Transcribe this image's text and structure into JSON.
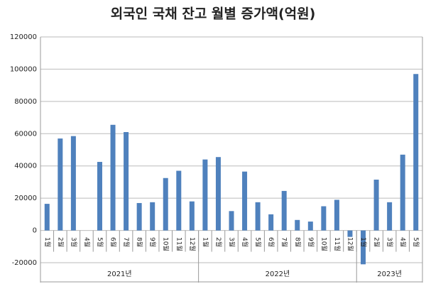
{
  "chart_data": {
    "type": "bar",
    "title": "외국인 국채 잔고 월별 증가액(억원)",
    "color": "#4f81bd",
    "ylim": [
      -20000,
      120000
    ],
    "yticks": [
      -20000,
      0,
      20000,
      40000,
      60000,
      80000,
      100000,
      120000
    ],
    "grid": true,
    "groups": [
      {
        "label": "2021년",
        "categories": [
          "1월",
          "2월",
          "3월",
          "4월",
          "5월",
          "6월",
          "7월",
          "8월",
          "9월",
          "10월",
          "11월",
          "12월"
        ],
        "values": [
          16500,
          57000,
          58500,
          0,
          42500,
          65500,
          61000,
          17000,
          17500,
          32500,
          37000,
          18000
        ]
      },
      {
        "label": "2022년",
        "categories": [
          "1월",
          "2월",
          "3월",
          "4월",
          "5월",
          "6월",
          "7월",
          "8월",
          "9월",
          "10월",
          "11월",
          "12월"
        ],
        "values": [
          44000,
          45500,
          12000,
          36500,
          17500,
          10000,
          24500,
          6500,
          5500,
          15000,
          19000,
          -4000
        ]
      },
      {
        "label": "2023년",
        "categories": [
          "1월",
          "2월",
          "3월",
          "4월",
          "5월"
        ],
        "values": [
          -21000,
          31500,
          17500,
          47000,
          97000
        ]
      }
    ]
  }
}
